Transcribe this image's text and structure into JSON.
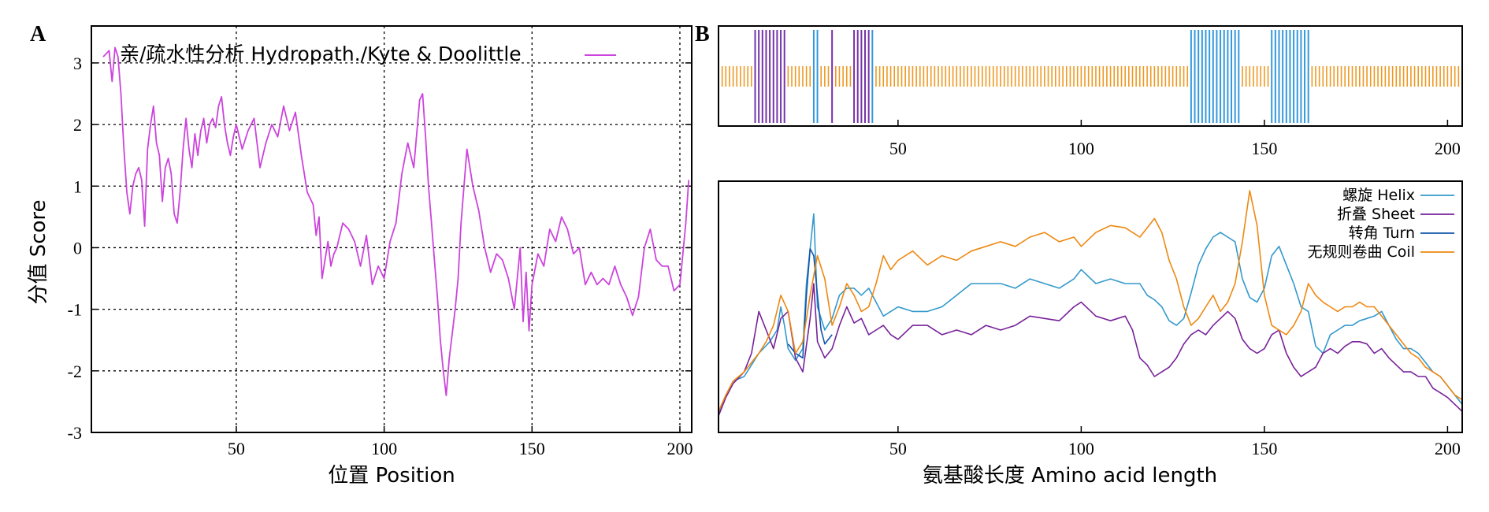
{
  "chart_data": [
    {
      "panel": "A",
      "type": "line",
      "ylabel": "分值 Score",
      "xlabel": "位置 Position",
      "xlim": [
        1,
        204
      ],
      "ylim": [
        -3,
        3.6
      ],
      "xticks": [
        50,
        100,
        150,
        200
      ],
      "yticks": [
        3,
        2,
        1,
        0,
        -1,
        -2,
        -3
      ],
      "grid": true,
      "legend_position": "top-left",
      "series": [
        {
          "name": "亲/疏水性分析 Hydropath./Kyte & Doolittle",
          "color": "#cc44dd",
          "x": [
            5,
            7,
            8,
            9,
            10,
            11,
            12,
            13,
            14,
            15,
            16,
            17,
            18,
            19,
            20,
            21,
            22,
            23,
            24,
            25,
            26,
            27,
            28,
            29,
            30,
            31,
            32,
            33,
            34,
            35,
            36,
            37,
            38,
            39,
            40,
            41,
            42,
            43,
            44,
            45,
            46,
            47,
            48,
            49,
            50,
            52,
            54,
            56,
            58,
            60,
            62,
            64,
            66,
            68,
            70,
            72,
            74,
            76,
            77,
            78,
            79,
            80,
            81,
            82,
            83,
            84,
            85,
            86,
            88,
            90,
            92,
            94,
            96,
            98,
            100,
            102,
            104,
            106,
            108,
            110,
            112,
            113,
            114,
            115,
            116,
            117,
            118,
            119,
            120,
            121,
            122,
            123,
            124,
            125,
            126,
            128,
            130,
            132,
            134,
            136,
            138,
            140,
            142,
            144,
            146,
            147,
            148,
            149,
            150,
            152,
            154,
            156,
            158,
            160,
            162,
            164,
            166,
            168,
            170,
            172,
            174,
            176,
            178,
            180,
            182,
            184,
            186,
            188,
            190,
            192,
            194,
            196,
            198,
            200,
            202,
            203
          ],
          "values": [
            3.1,
            3.2,
            2.7,
            3.25,
            3.1,
            2.5,
            1.6,
            0.9,
            0.55,
            1.0,
            1.2,
            1.3,
            1.1,
            0.35,
            1.6,
            2.0,
            2.3,
            1.7,
            1.5,
            0.75,
            1.3,
            1.45,
            1.2,
            0.55,
            0.4,
            0.9,
            1.6,
            2.1,
            1.6,
            1.3,
            1.85,
            1.5,
            1.9,
            2.1,
            1.7,
            2.0,
            2.1,
            1.95,
            2.3,
            2.45,
            2.0,
            1.7,
            1.5,
            1.8,
            2.0,
            1.6,
            1.9,
            2.1,
            1.3,
            1.7,
            2.0,
            1.8,
            2.3,
            1.9,
            2.2,
            1.5,
            0.9,
            0.7,
            0.2,
            0.5,
            -0.5,
            -0.2,
            0.1,
            -0.3,
            -0.1,
            0.0,
            0.2,
            0.4,
            0.3,
            0.1,
            -0.3,
            0.2,
            -0.6,
            -0.3,
            -0.5,
            0.1,
            0.4,
            1.2,
            1.7,
            1.3,
            2.4,
            2.5,
            1.8,
            1.0,
            0.4,
            -0.2,
            -0.8,
            -1.5,
            -2.0,
            -2.4,
            -1.8,
            -1.4,
            -1.0,
            -0.5,
            0.4,
            1.6,
            1.0,
            0.6,
            0.0,
            -0.4,
            -0.1,
            -0.2,
            -0.5,
            -1.0,
            0.0,
            -1.2,
            -0.4,
            -1.35,
            -0.6,
            -0.1,
            -0.3,
            0.3,
            0.1,
            0.5,
            0.3,
            -0.1,
            0.0,
            -0.6,
            -0.4,
            -0.6,
            -0.5,
            -0.6,
            -0.3,
            -0.6,
            -0.8,
            -1.1,
            -0.8,
            0.0,
            0.3,
            -0.2,
            -0.3,
            -0.3,
            -0.7,
            -0.6,
            0.4,
            1.1
          ]
        }
      ]
    },
    {
      "panel": "B",
      "type": "bar",
      "title": "",
      "xlim": [
        1,
        204
      ],
      "xticks": [
        50,
        100,
        150,
        200
      ],
      "ylim": [
        0,
        1
      ],
      "segments": [
        {
          "type": "coil",
          "color": "#ee9922",
          "x": [
            2,
            3,
            4,
            5,
            6,
            7,
            8,
            9,
            10,
            20,
            21,
            22,
            23,
            24,
            25,
            26,
            29,
            30,
            31,
            33,
            34,
            35,
            36,
            37,
            44,
            45,
            46,
            47,
            48,
            49,
            50,
            51,
            52,
            53,
            54,
            55,
            56,
            57,
            58,
            59,
            60,
            61,
            62,
            63,
            64,
            65,
            66,
            67,
            68,
            69,
            70,
            71,
            72,
            73,
            74,
            75,
            76,
            77,
            78,
            79,
            80,
            81,
            82,
            83,
            84,
            85,
            86,
            87,
            88,
            89,
            90,
            91,
            92,
            93,
            94,
            95,
            96,
            97,
            98,
            99,
            100,
            101,
            102,
            103,
            104,
            105,
            106,
            107,
            108,
            109,
            110,
            111,
            112,
            113,
            114,
            115,
            116,
            117,
            118,
            119,
            120,
            121,
            122,
            123,
            124,
            125,
            126,
            127,
            128,
            129,
            144,
            145,
            146,
            147,
            148,
            149,
            150,
            151,
            163,
            164,
            165,
            166,
            167,
            168,
            169,
            170,
            171,
            172,
            173,
            174,
            175,
            176,
            177,
            178,
            179,
            180,
            181,
            182,
            183,
            184,
            185,
            186,
            187,
            188,
            189,
            190,
            191,
            192,
            193,
            194,
            195,
            196,
            197,
            198,
            199,
            200,
            201,
            202,
            203
          ]
        },
        {
          "type": "sheet",
          "color": "#7733aa",
          "x": [
            11,
            12,
            13,
            14,
            15,
            16,
            17,
            18,
            19,
            32,
            38,
            39,
            40,
            41,
            42
          ]
        },
        {
          "type": "helix",
          "color": "#3399dd",
          "x": [
            27,
            28,
            43,
            130,
            131,
            132,
            133,
            134,
            135,
            136,
            137,
            138,
            139,
            140,
            141,
            142,
            143,
            152,
            153,
            154,
            155,
            156,
            157,
            158,
            159,
            160,
            161,
            162
          ]
        }
      ]
    },
    {
      "panel": "B",
      "type": "line",
      "xlabel": "氨基酸长度  Amino acid length",
      "xlim": [
        1,
        204
      ],
      "ylim": [
        0,
        1
      ],
      "xticks": [
        50,
        100,
        150,
        200
      ],
      "legend_position": "top-right",
      "series": [
        {
          "name": "螺旋 Helix",
          "color": "#3399cc",
          "x": [
            1,
            3,
            5,
            8,
            10,
            12,
            15,
            17,
            18,
            19,
            20,
            22,
            24,
            25,
            26,
            27,
            28,
            30,
            32,
            34,
            36,
            38,
            40,
            42,
            44,
            46,
            48,
            50,
            54,
            58,
            62,
            66,
            70,
            74,
            78,
            82,
            86,
            90,
            94,
            98,
            100,
            104,
            108,
            112,
            116,
            118,
            120,
            122,
            124,
            126,
            128,
            130,
            132,
            134,
            136,
            138,
            140,
            142,
            144,
            146,
            148,
            150,
            152,
            154,
            156,
            158,
            160,
            162,
            164,
            166,
            168,
            170,
            172,
            174,
            176,
            178,
            180,
            182,
            184,
            186,
            188,
            190,
            192,
            194,
            196,
            198,
            200,
            202,
            204
          ],
          "values": [
            0.04,
            0.12,
            0.18,
            0.2,
            0.25,
            0.3,
            0.35,
            0.4,
            0.5,
            0.42,
            0.32,
            0.27,
            0.32,
            0.6,
            0.75,
            0.9,
            0.5,
            0.4,
            0.45,
            0.55,
            0.58,
            0.58,
            0.55,
            0.58,
            0.52,
            0.46,
            0.48,
            0.5,
            0.48,
            0.48,
            0.5,
            0.55,
            0.6,
            0.6,
            0.6,
            0.58,
            0.62,
            0.6,
            0.58,
            0.62,
            0.66,
            0.6,
            0.62,
            0.6,
            0.6,
            0.55,
            0.53,
            0.5,
            0.44,
            0.42,
            0.45,
            0.56,
            0.68,
            0.75,
            0.8,
            0.82,
            0.8,
            0.78,
            0.62,
            0.54,
            0.52,
            0.58,
            0.72,
            0.76,
            0.68,
            0.6,
            0.5,
            0.48,
            0.33,
            0.3,
            0.38,
            0.4,
            0.42,
            0.42,
            0.44,
            0.45,
            0.46,
            0.48,
            0.42,
            0.36,
            0.32,
            0.32,
            0.3,
            0.26,
            0.22,
            0.2,
            0.16,
            0.12,
            0.08
          ]
        },
        {
          "name": "折叠 Sheet",
          "color": "#772299",
          "x": [
            1,
            3,
            5,
            8,
            10,
            12,
            14,
            16,
            18,
            20,
            22,
            24,
            26,
            27,
            28,
            30,
            32,
            34,
            36,
            38,
            40,
            42,
            44,
            46,
            48,
            50,
            54,
            58,
            62,
            66,
            70,
            74,
            78,
            82,
            86,
            90,
            94,
            98,
            100,
            104,
            108,
            112,
            114,
            116,
            118,
            120,
            122,
            124,
            126,
            128,
            130,
            132,
            134,
            136,
            138,
            140,
            142,
            144,
            146,
            148,
            150,
            152,
            154,
            156,
            158,
            160,
            162,
            164,
            166,
            168,
            170,
            172,
            174,
            176,
            178,
            180,
            182,
            184,
            186,
            188,
            190,
            192,
            194,
            196,
            198,
            200,
            202,
            204
          ],
          "values": [
            0.03,
            0.11,
            0.17,
            0.22,
            0.3,
            0.48,
            0.4,
            0.32,
            0.45,
            0.48,
            0.28,
            0.22,
            0.45,
            0.6,
            0.35,
            0.28,
            0.32,
            0.42,
            0.5,
            0.43,
            0.45,
            0.38,
            0.4,
            0.42,
            0.38,
            0.36,
            0.42,
            0.42,
            0.38,
            0.4,
            0.38,
            0.42,
            0.4,
            0.42,
            0.46,
            0.45,
            0.44,
            0.5,
            0.52,
            0.46,
            0.44,
            0.46,
            0.4,
            0.28,
            0.25,
            0.2,
            0.22,
            0.24,
            0.28,
            0.34,
            0.38,
            0.4,
            0.38,
            0.42,
            0.45,
            0.48,
            0.45,
            0.36,
            0.32,
            0.3,
            0.32,
            0.38,
            0.4,
            0.3,
            0.24,
            0.2,
            0.22,
            0.24,
            0.3,
            0.32,
            0.3,
            0.33,
            0.35,
            0.35,
            0.34,
            0.3,
            0.32,
            0.28,
            0.25,
            0.22,
            0.22,
            0.2,
            0.2,
            0.15,
            0.13,
            0.11,
            0.08,
            0.05
          ]
        },
        {
          "name": "转角 Turn",
          "color": "#1155aa",
          "x": [
            20,
            22,
            24,
            25,
            26,
            27,
            28,
            29,
            30,
            31,
            32
          ],
          "values": [
            0.34,
            0.3,
            0.28,
            0.55,
            0.75,
            0.72,
            0.55,
            0.4,
            0.34,
            0.36,
            0.38
          ]
        },
        {
          "name": "无规则卷曲 Coil",
          "color": "#ee8811",
          "x": [
            1,
            3,
            5,
            8,
            10,
            12,
            14,
            16,
            18,
            20,
            22,
            24,
            26,
            28,
            30,
            32,
            34,
            36,
            38,
            40,
            42,
            44,
            46,
            48,
            50,
            54,
            58,
            62,
            66,
            70,
            74,
            78,
            82,
            86,
            90,
            94,
            98,
            100,
            104,
            108,
            112,
            114,
            116,
            118,
            120,
            122,
            124,
            126,
            128,
            130,
            132,
            134,
            136,
            138,
            140,
            142,
            144,
            146,
            148,
            150,
            152,
            154,
            156,
            158,
            160,
            162,
            164,
            166,
            168,
            170,
            172,
            174,
            176,
            178,
            180,
            182,
            184,
            186,
            188,
            190,
            192,
            194,
            196,
            198,
            200,
            202,
            204
          ],
          "values": [
            0.05,
            0.12,
            0.18,
            0.22,
            0.26,
            0.3,
            0.35,
            0.42,
            0.55,
            0.48,
            0.3,
            0.35,
            0.55,
            0.72,
            0.62,
            0.42,
            0.5,
            0.6,
            0.55,
            0.48,
            0.5,
            0.6,
            0.72,
            0.66,
            0.7,
            0.74,
            0.68,
            0.72,
            0.7,
            0.74,
            0.76,
            0.78,
            0.76,
            0.8,
            0.82,
            0.78,
            0.8,
            0.76,
            0.82,
            0.85,
            0.84,
            0.82,
            0.8,
            0.84,
            0.88,
            0.82,
            0.7,
            0.62,
            0.5,
            0.42,
            0.45,
            0.5,
            0.55,
            0.48,
            0.52,
            0.6,
            0.78,
            1.0,
            0.85,
            0.55,
            0.42,
            0.4,
            0.38,
            0.42,
            0.48,
            0.6,
            0.55,
            0.52,
            0.5,
            0.48,
            0.5,
            0.5,
            0.52,
            0.5,
            0.5,
            0.46,
            0.42,
            0.38,
            0.34,
            0.3,
            0.28,
            0.24,
            0.22,
            0.2,
            0.16,
            0.12,
            0.1
          ]
        }
      ]
    }
  ]
}
